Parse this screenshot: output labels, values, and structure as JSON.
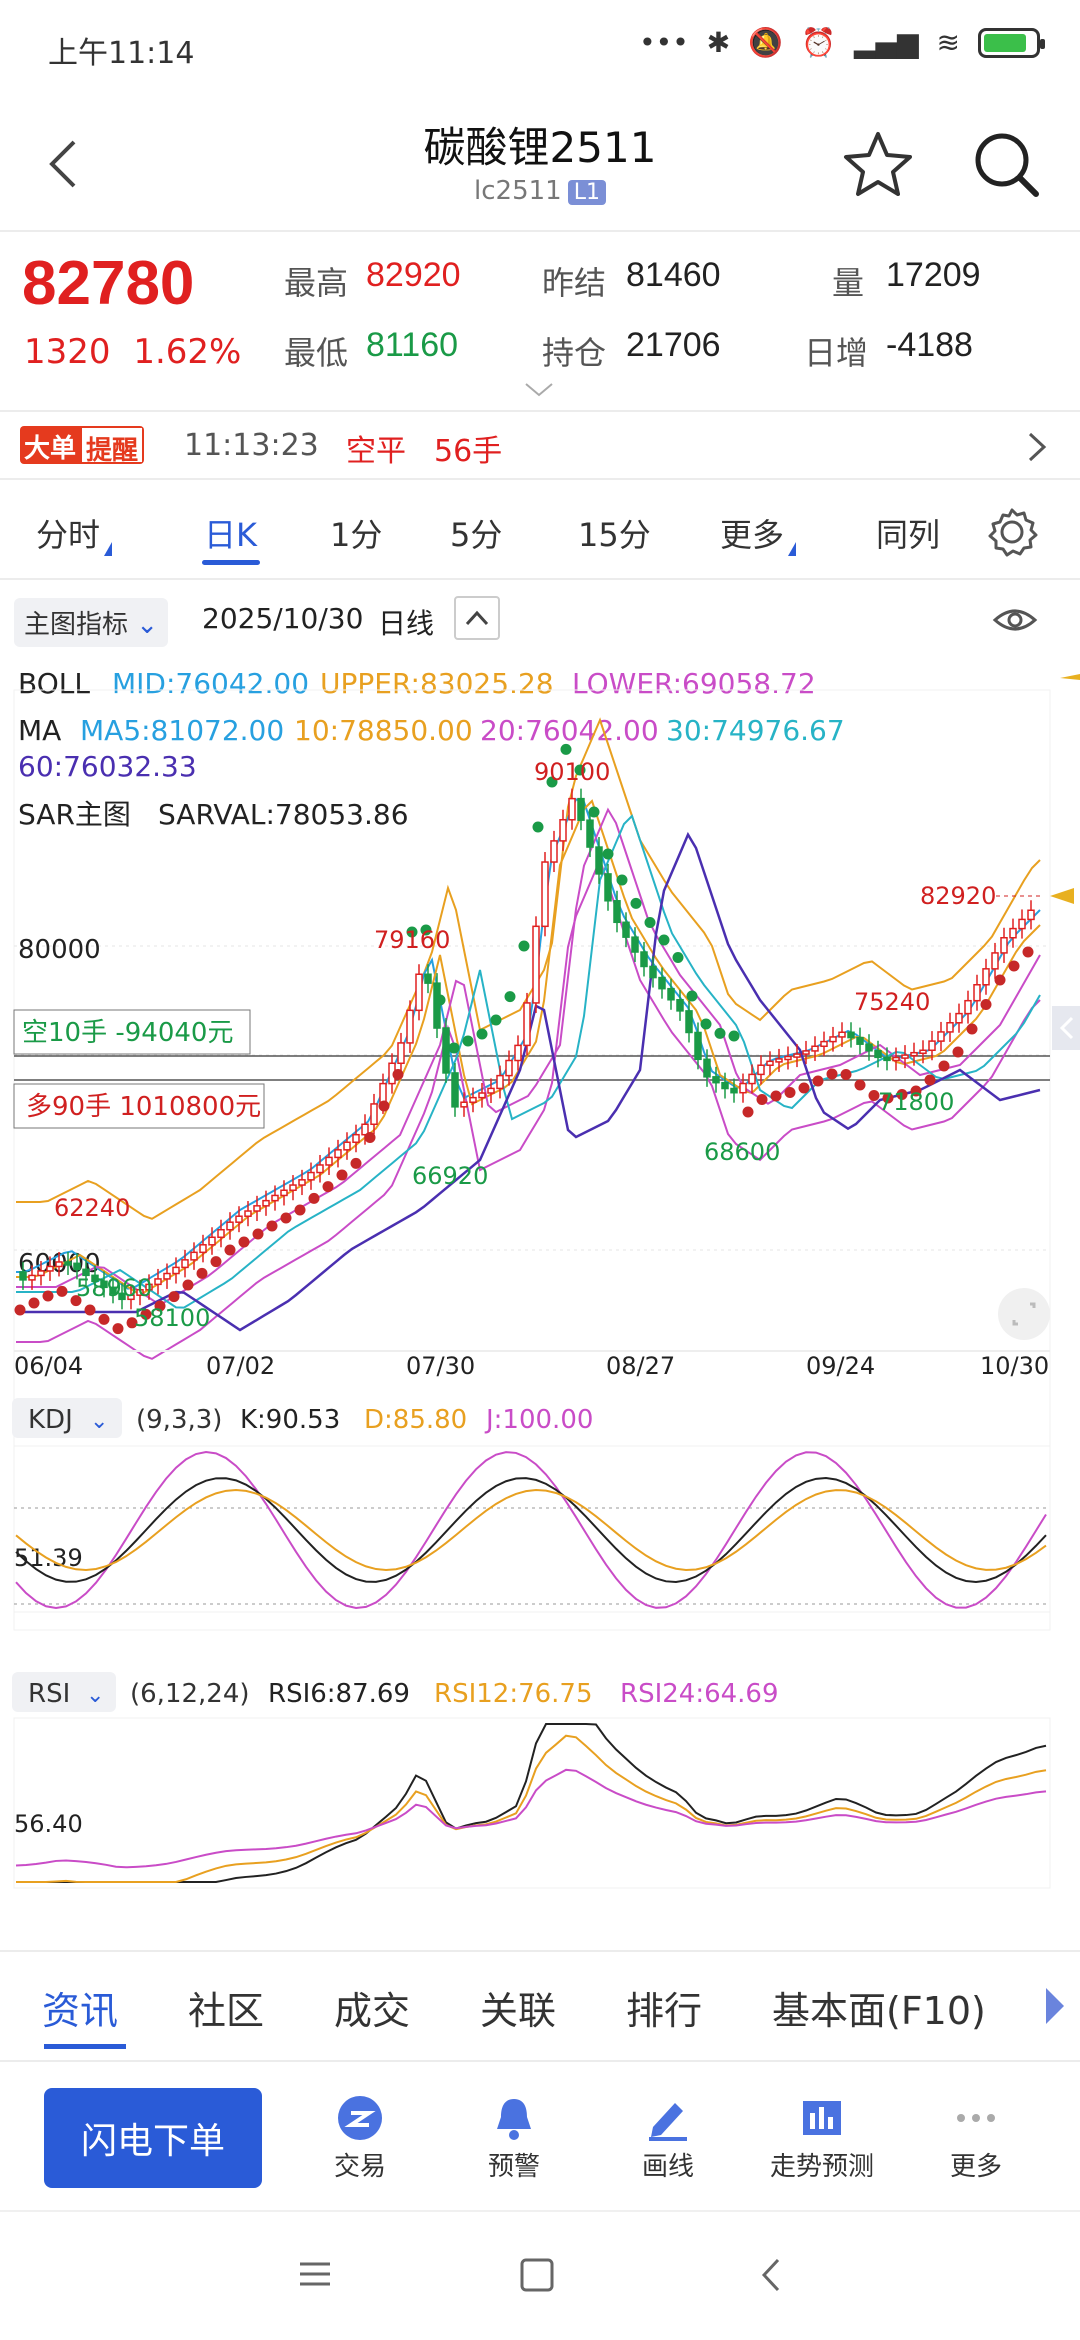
{
  "status": {
    "time": "上午11:14"
  },
  "header": {
    "title": "碳酸锂2511",
    "code": "lc2511",
    "badge": "L1"
  },
  "quote": {
    "price": "82780",
    "change": "1320",
    "change_pct": "1.62%",
    "high_label": "最高",
    "high": "82920",
    "low_label": "最低",
    "low": "81160",
    "prev_settle_label": "昨结",
    "prev_settle": "81460",
    "open_int_label": "持仓",
    "open_int": "21706",
    "volume_label": "量",
    "volume": "17209",
    "daily_inc_label": "日增",
    "daily_inc": "-4188"
  },
  "alert": {
    "badge_a": "大单",
    "badge_b": "提醒",
    "time": "11:13:23",
    "direction": "空平",
    "qty": "56手"
  },
  "periods": {
    "tabs": [
      "分时",
      "日K",
      "1分",
      "5分",
      "15分",
      "更多",
      "同列"
    ],
    "active": "日K"
  },
  "chart_toolbar": {
    "indicator": "主图指标",
    "date": "2025/10/30",
    "kind": "日线"
  },
  "legend": {
    "boll_label": "BOLL",
    "boll_mid": "MID:76042.00",
    "boll_upper": "UPPER:83025.28",
    "boll_lower": "LOWER:69058.72",
    "ma_label": "MA",
    "ma5": "MA5:81072.00",
    "ma10": "10:78850.00",
    "ma20": "20:76042.00",
    "ma30": "30:74976.67",
    "ma60": "60:76032.33",
    "sar_label": "SAR主图",
    "sar_val": "SARVAL:78053.86"
  },
  "positions": {
    "short": "空10手  -94040元",
    "long": "多90手  1010800元"
  },
  "kdj": {
    "label": "KDJ",
    "params": "(9,3,3)",
    "k": "K:90.53",
    "d": "D:85.80",
    "j": "J:100.00",
    "level": "51.39"
  },
  "rsi": {
    "label": "RSI",
    "params": "(6,12,24)",
    "rsi6": "RSI6:87.69",
    "rsi12": "RSI12:76.75",
    "rsi24": "RSI24:64.69",
    "level": "56.40"
  },
  "news_tabs": [
    "资讯",
    "社区",
    "成交",
    "关联",
    "排行",
    "基本面(F10)"
  ],
  "actions": {
    "flash": "闪电下单",
    "items": [
      "交易",
      "预警",
      "画线",
      "走势预测",
      "更多"
    ]
  },
  "colors": {
    "red": "#e02020",
    "green": "#1a9a47",
    "blue": "#2a5bd7",
    "orange": "#e8a020",
    "magenta": "#c94cc7",
    "cyan": "#27b3c6",
    "purple": "#4a2fb0"
  },
  "chart_data": {
    "type": "candlestick",
    "x_ticks": [
      "06/04",
      "07/02",
      "07/30",
      "08/27",
      "09/24",
      "10/30"
    ],
    "y_ticks": [
      "80000",
      "60000"
    ],
    "price_labels": [
      "90100",
      "79160",
      "82920",
      "75240",
      "71800",
      "68600",
      "66920",
      "62240",
      "58960",
      "58100"
    ],
    "high": 90100,
    "low": 58100,
    "last_high": 82920
  }
}
